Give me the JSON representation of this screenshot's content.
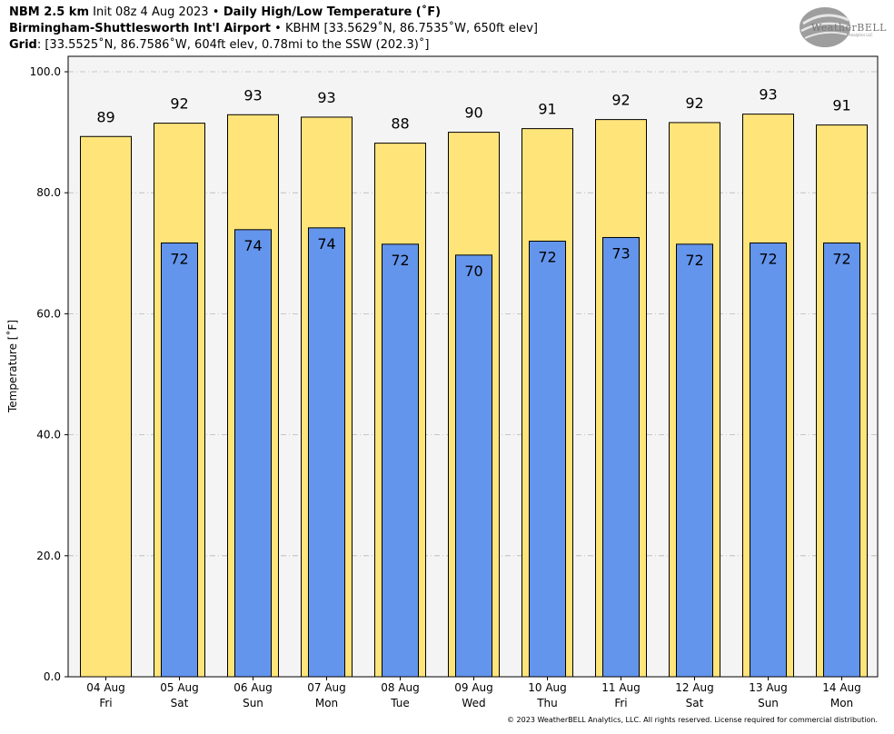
{
  "header": {
    "line1_bold_a": "NBM 2.5 km",
    "line1_plain_a": " Init 08z 4 Aug 2023 ",
    "line1_sep": "•",
    "line1_bold_b": " Daily High/Low Temperature (˚F)",
    "line2_bold": "Birmingham-Shuttlesworth Int'l Airport",
    "line2_plain": " • KBHM [33.5629˚N, 86.7535˚W, 650ft elev]",
    "line3_bold": "Grid",
    "line3_plain": ": [33.5525˚N, 86.7586˚W, 604ft elev, 0.78mi to the SSW (202.3)˚]"
  },
  "logo": {
    "text": "WeatherBELL",
    "sub": "Analytics LLC"
  },
  "footer": "© 2023 WeatherBELL Analytics, LLC. All rights reserved. License required for commercial distribution.",
  "chart_data": {
    "type": "bar",
    "ylabel": "Temperature [˚F]",
    "ylim": [
      0,
      100
    ],
    "yticks": [
      "0.0",
      "20.0",
      "40.0",
      "60.0",
      "80.0",
      "100.0"
    ],
    "grid": true,
    "categories": [
      [
        "04 Aug",
        "Fri"
      ],
      [
        "05 Aug",
        "Sat"
      ],
      [
        "06 Aug",
        "Sun"
      ],
      [
        "07 Aug",
        "Mon"
      ],
      [
        "08 Aug",
        "Tue"
      ],
      [
        "09 Aug",
        "Wed"
      ],
      [
        "10 Aug",
        "Thu"
      ],
      [
        "11 Aug",
        "Fri"
      ],
      [
        "12 Aug",
        "Sat"
      ],
      [
        "13 Aug",
        "Sun"
      ],
      [
        "14 Aug",
        "Mon"
      ]
    ],
    "series": [
      {
        "role": "high",
        "color": "#ffe47a",
        "values": [
          89.3,
          91.5,
          92.9,
          92.5,
          88.2,
          90.0,
          90.6,
          92.1,
          91.6,
          93.0,
          91.2
        ],
        "labels": [
          "89",
          "92",
          "93",
          "93",
          "88",
          "90",
          "91",
          "92",
          "92",
          "93",
          "91"
        ]
      },
      {
        "role": "low",
        "color": "#6495ed",
        "values": [
          null,
          71.7,
          73.9,
          74.2,
          71.5,
          69.7,
          72.0,
          72.6,
          71.5,
          71.7,
          71.7
        ],
        "labels": [
          null,
          "72",
          "74",
          "74",
          "72",
          "70",
          "72",
          "73",
          "72",
          "72",
          "72"
        ]
      }
    ]
  }
}
